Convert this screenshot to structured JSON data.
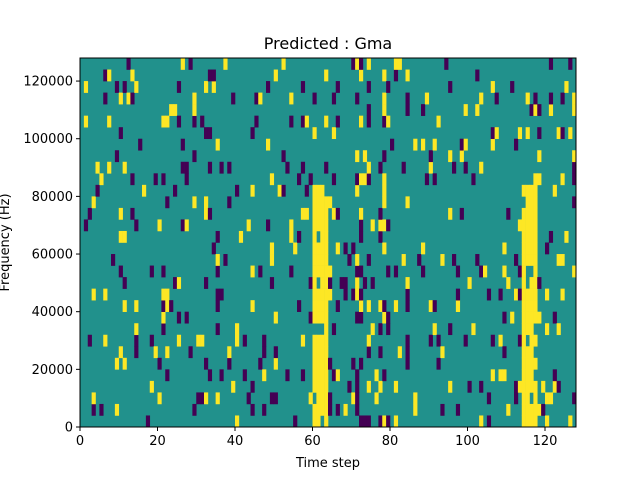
{
  "chart_data": {
    "type": "heatmap",
    "title": "Predicted : Gma",
    "xlabel": "Time step",
    "ylabel": "Frequency (Hz)",
    "xlim": [
      0,
      128
    ],
    "ylim": [
      0,
      128000
    ],
    "x_ticks": [
      0,
      20,
      40,
      60,
      80,
      100,
      120
    ],
    "y_ticks": [
      0,
      20000,
      40000,
      60000,
      80000,
      100000,
      120000
    ],
    "y_tick_labels": [
      "0",
      "20000",
      "40000",
      "60000",
      "80000",
      "100000",
      "120000"
    ],
    "grid": false,
    "value_range": [
      -1,
      1
    ],
    "colors": {
      "background": "#21918c",
      "low": "#440154",
      "high": "#fde725"
    },
    "n_time_steps": 128,
    "n_freq_bins": 32,
    "freq_bin_width": 4000,
    "strong_bands": [
      {
        "t_start": 60,
        "t_end": 64,
        "f_min": 0,
        "f_max": 85000,
        "value": 1
      },
      {
        "t_start": 114,
        "t_end": 118,
        "f_min": 0,
        "f_max": 85000,
        "value": 1
      }
    ],
    "dense_columns": [
      {
        "t": 59,
        "density": 0.18
      },
      {
        "t": 64,
        "density": 0.2
      },
      {
        "t": 66,
        "density": 0.28
      },
      {
        "t": 68,
        "density": 0.25
      },
      {
        "t": 71,
        "density": 0.45
      },
      {
        "t": 72,
        "density": 0.4
      },
      {
        "t": 74,
        "density": 0.28
      },
      {
        "t": 77,
        "density": 0.35
      },
      {
        "t": 78,
        "density": 0.35
      },
      {
        "t": 113,
        "density": 0.2
      },
      {
        "t": 118,
        "density": 0.22
      },
      {
        "t": 127,
        "density": 0.3
      }
    ],
    "background_density": 0.1
  }
}
